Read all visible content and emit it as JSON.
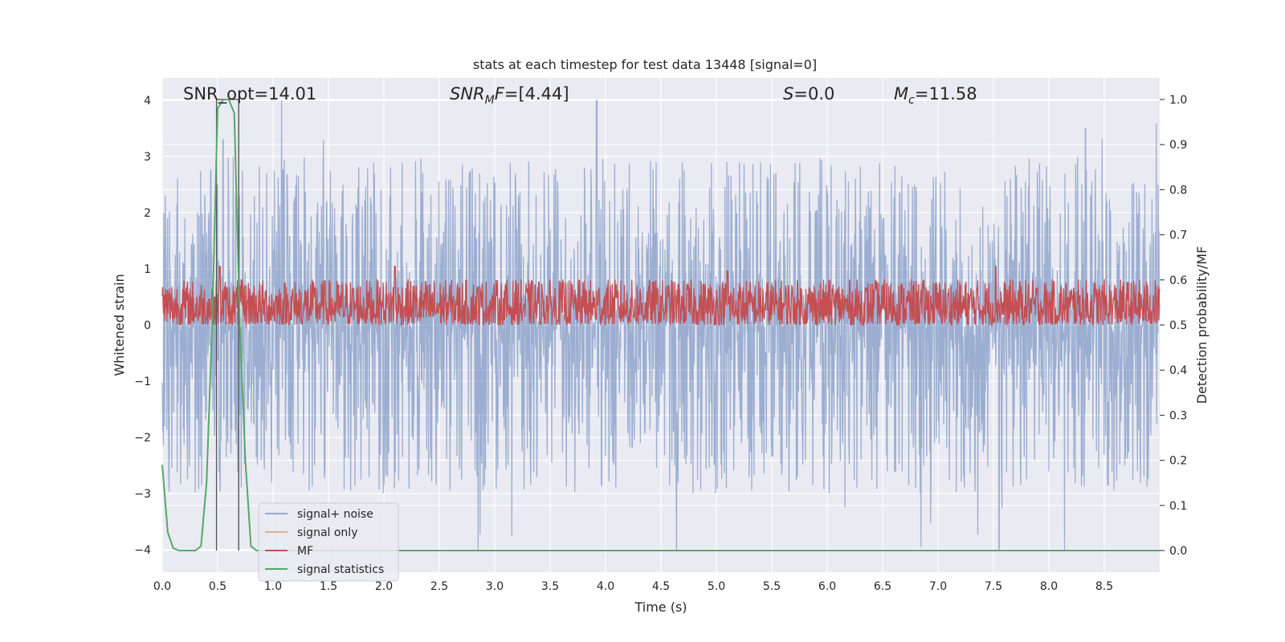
{
  "chart_data": {
    "type": "line",
    "title": "stats at each timestep for test data 13448 [signal=0]",
    "xlabel": "Time (s)",
    "ylabel_left": "Whitened strain",
    "ylabel_right": "Detection probability/MF",
    "xlim": [
      0.0,
      9.0
    ],
    "ylim_left": [
      -4.4,
      4.4
    ],
    "ylim_right": [
      -0.048,
      1.048
    ],
    "xticks": [
      "0.0",
      "0.5",
      "1.0",
      "1.5",
      "2.0",
      "2.5",
      "3.0",
      "3.5",
      "4.0",
      "4.5",
      "5.0",
      "5.5",
      "6.0",
      "6.5",
      "7.0",
      "7.5",
      "8.0",
      "8.5"
    ],
    "yticks_left": [
      "−4",
      "−3",
      "−2",
      "−1",
      "0",
      "1",
      "2",
      "3",
      "4"
    ],
    "yticks_right": [
      "0.0",
      "0.1",
      "0.2",
      "0.3",
      "0.4",
      "0.5",
      "0.6",
      "0.7",
      "0.8",
      "0.9",
      "1.0"
    ],
    "grid": true,
    "annotations": {
      "snr_opt": "SNR_opt=14.01",
      "snr_mf": "[4.44]",
      "s_value": "0.0",
      "mc_value": "11.58"
    },
    "legend": {
      "placement": "lower-left",
      "entries": [
        "signal+ noise",
        "signal only",
        "MF",
        "signal statistics"
      ]
    },
    "colors": {
      "noise": "#4c72b0",
      "signal_only": "#dd8452",
      "mf": "#c44e52",
      "stats": "#55a868",
      "window": "#555555",
      "background": "#eaeaf2"
    },
    "noise_envelope": {
      "typical_range": [
        -1.6,
        2.0
      ],
      "notable_peaks": [
        [
          0.55,
          3.3
        ],
        [
          3.92,
          4.0
        ],
        [
          7.55,
          -4.0
        ],
        [
          8.33,
          3.5
        ]
      ]
    },
    "signal_window": {
      "x_start": 0.49,
      "x_end": 0.69,
      "top": 1.0,
      "bottom": 0.0
    },
    "series": [
      {
        "name": "signal statistics",
        "axis": "right",
        "x": [
          0.0,
          0.05,
          0.1,
          0.15,
          0.2,
          0.25,
          0.3,
          0.35,
          0.4,
          0.45,
          0.5,
          0.55,
          0.6,
          0.65,
          0.7,
          0.75,
          0.8,
          0.85,
          0.9,
          9.0
        ],
        "y": [
          0.19,
          0.04,
          0.005,
          0.0,
          0.0,
          0.0,
          0.0,
          0.01,
          0.15,
          0.5,
          0.98,
          1.0,
          1.0,
          0.97,
          0.5,
          0.2,
          0.01,
          0.0,
          0.0,
          0.0
        ]
      },
      {
        "name": "MF",
        "axis": "right",
        "band": [
          0.5,
          0.62
        ],
        "peaks": [
          [
            0.52,
            0.63
          ],
          [
            2.1,
            0.63
          ],
          [
            5.1,
            0.62
          ],
          [
            7.52,
            0.63
          ]
        ]
      },
      {
        "name": "signal only",
        "axis": "left",
        "values": []
      }
    ]
  }
}
